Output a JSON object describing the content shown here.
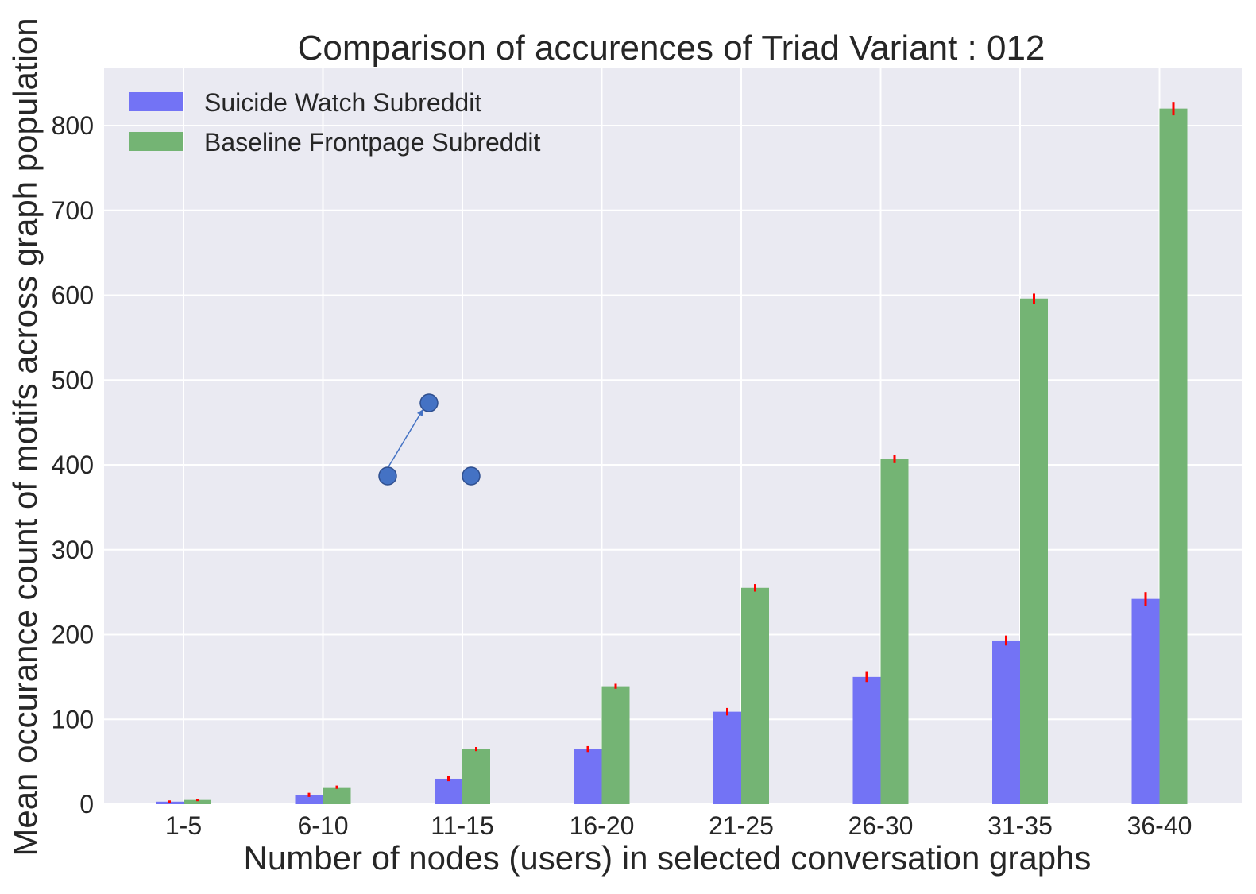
{
  "chart_data": {
    "type": "bar",
    "title": "Comparison of accurences of Triad Variant  : 012",
    "xlabel": "Number of nodes (users) in selected conversation graphs",
    "ylabel": "Mean occurance count of motifs across graph population",
    "categories": [
      "1-5",
      "6-10",
      "11-15",
      "16-20",
      "21-25",
      "26-30",
      "31-35",
      "36-40"
    ],
    "series": [
      {
        "name": "Suicide Watch Subreddit",
        "color": "#7373f5",
        "values": [
          3,
          11,
          30,
          65,
          109,
          150,
          193,
          242
        ],
        "errors": [
          0.5,
          1.5,
          2,
          2.5,
          3.5,
          5,
          5,
          7
        ]
      },
      {
        "name": "Baseline Frontpage Subreddit",
        "color": "#74b474",
        "values": [
          5,
          20,
          65,
          139,
          255,
          407,
          596,
          820
        ],
        "errors": [
          0.5,
          1,
          1.5,
          2,
          3.5,
          4,
          5,
          7
        ]
      }
    ],
    "ylim": [
      0,
      870
    ],
    "yticks": [
      0,
      100,
      200,
      300,
      400,
      500,
      600,
      700,
      800
    ],
    "grid": true,
    "legend_position": "top-left",
    "error_bar_color": "#ff0000",
    "background_color": "#eaeaf2",
    "grid_color": "#ffffff",
    "inset_icon": "triad-012-motif-diagram",
    "inset_node_color": "#4472c4"
  }
}
